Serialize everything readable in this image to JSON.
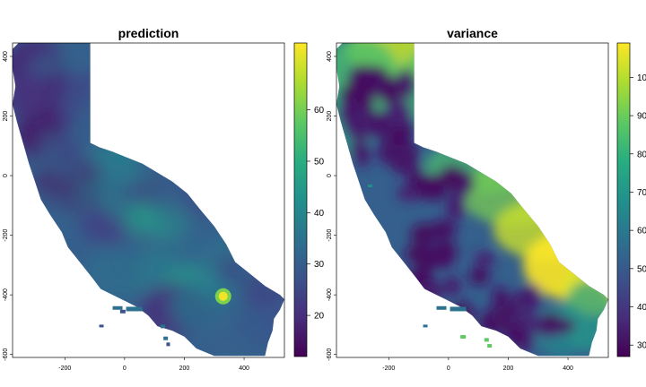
{
  "chart_data": [
    {
      "type": "heatmap",
      "title": "prediction",
      "xlabel": "",
      "ylabel": "",
      "xlim": [
        -375,
        535
      ],
      "ylim": [
        -610,
        445
      ],
      "x_ticks": [
        -200,
        0,
        200,
        400
      ],
      "y_ticks": [
        -600,
        -400,
        -200,
        0,
        200,
        400
      ],
      "colorbar": {
        "min": 12,
        "max": 73,
        "ticks": [
          20,
          30,
          40,
          50,
          60
        ]
      },
      "hotspot_max_near": {
        "x": 330,
        "y": -405,
        "value": 70
      },
      "colormap": "viridis"
    },
    {
      "type": "heatmap",
      "title": "variance",
      "xlabel": "",
      "ylabel": "",
      "xlim": [
        -375,
        535
      ],
      "ylim": [
        -610,
        445
      ],
      "x_ticks": [
        -200,
        0,
        200,
        400
      ],
      "y_ticks": [
        -600,
        -400,
        -200,
        0,
        200,
        400
      ],
      "colorbar": {
        "min": 27,
        "max": 109,
        "ticks": [
          30,
          40,
          50,
          60,
          70,
          80,
          90,
          100
        ]
      },
      "colormap": "viridis"
    }
  ]
}
